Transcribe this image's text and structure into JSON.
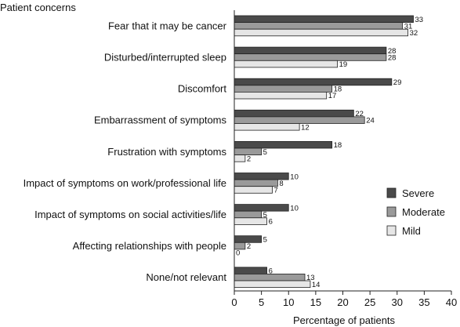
{
  "chart_data": {
    "type": "bar",
    "orientation": "horizontal",
    "title": "Patient concerns",
    "xlabel": "Percentage of patients",
    "ylabel": "",
    "xlim": [
      0,
      40
    ],
    "xticks": [
      0,
      5,
      10,
      15,
      20,
      25,
      30,
      35,
      40
    ],
    "grid": false,
    "legend_position": "right",
    "categories": [
      "Fear that it may be cancer",
      "Disturbed/interrupted sleep",
      "Discomfort",
      "Embarrassment of symptoms",
      "Frustration with symptoms",
      "Impact of symptoms on work/professional life",
      "Impact of symptoms on social activities/life",
      "Affecting relationships with people",
      "None/not relevant"
    ],
    "series": [
      {
        "name": "Severe",
        "color": "#4a4a4a",
        "values": [
          33,
          28,
          29,
          22,
          18,
          10,
          10,
          5,
          6
        ]
      },
      {
        "name": "Moderate",
        "color": "#9a9a9a",
        "values": [
          31,
          28,
          18,
          24,
          5,
          8,
          5,
          2,
          13
        ]
      },
      {
        "name": "Mild",
        "color": "#e6e6e6",
        "values": [
          32,
          19,
          17,
          12,
          2,
          7,
          6,
          0,
          14
        ]
      }
    ]
  }
}
